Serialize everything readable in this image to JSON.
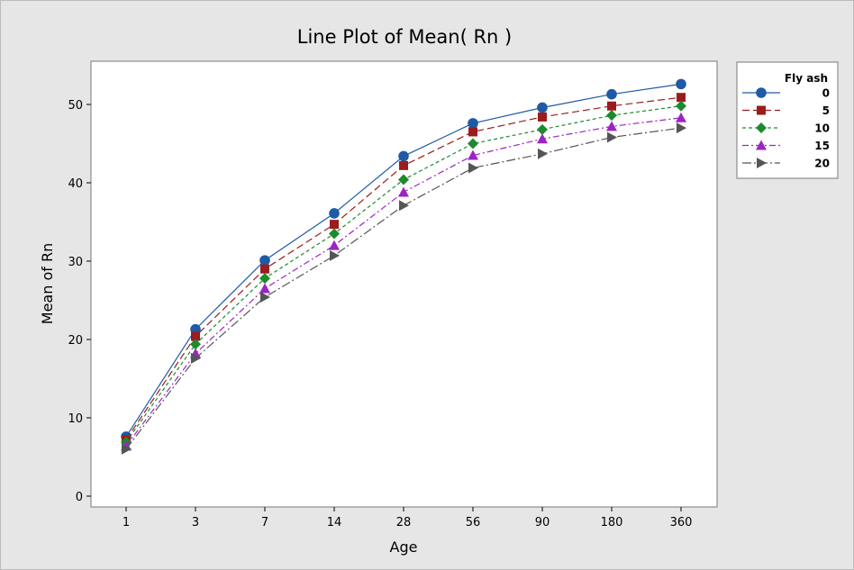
{
  "chart_data": {
    "type": "line",
    "title": "Line Plot of Mean( Rn )",
    "xlabel": "Age",
    "ylabel": "Mean of Rn",
    "categories": [
      "1",
      "3",
      "7",
      "14",
      "28",
      "56",
      "90",
      "180",
      "360"
    ],
    "ylim": [
      0,
      55
    ],
    "yticks": [
      0,
      10,
      20,
      30,
      40,
      50
    ],
    "grid": false,
    "legend": {
      "title": "Fly ash",
      "placement": "right"
    },
    "series": [
      {
        "name": "0",
        "color": "#1f5aa6",
        "marker": "circle",
        "dash": "solid",
        "values": [
          7.6,
          21.3,
          30.1,
          36.1,
          43.4,
          47.6,
          49.6,
          51.3,
          52.6
        ]
      },
      {
        "name": "5",
        "color": "#9b1c1c",
        "marker": "square",
        "dash": "long-dash",
        "values": [
          7.2,
          20.4,
          29.0,
          34.7,
          42.2,
          46.5,
          48.4,
          49.8,
          50.9
        ]
      },
      {
        "name": "10",
        "color": "#1e8a2e",
        "marker": "diamond",
        "dash": "short-dash",
        "values": [
          6.9,
          19.4,
          27.8,
          33.5,
          40.4,
          45.0,
          46.8,
          48.6,
          49.8
        ]
      },
      {
        "name": "15",
        "color": "#9b25c4",
        "marker": "triangle-up",
        "dash": "dash-dot",
        "values": [
          6.4,
          18.2,
          26.5,
          32.0,
          38.8,
          43.5,
          45.6,
          47.2,
          48.3
        ]
      },
      {
        "name": "20",
        "color": "#555555",
        "marker": "triangle-right",
        "dash": "long-dash-dot",
        "values": [
          6.0,
          17.6,
          25.4,
          30.7,
          37.1,
          41.9,
          43.7,
          45.8,
          47.0
        ]
      }
    ]
  }
}
